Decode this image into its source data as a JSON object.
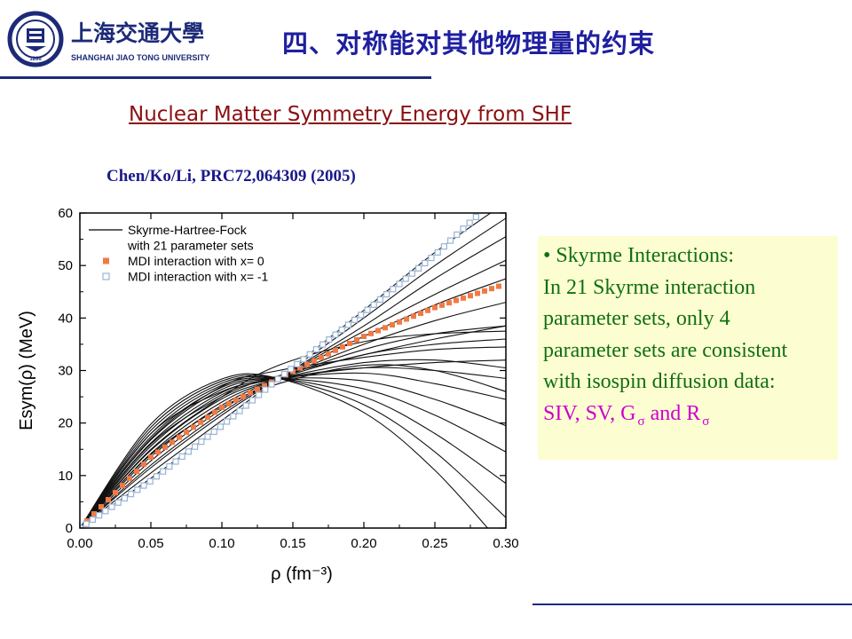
{
  "header": {
    "logo_chinese": "上海交通大學",
    "logo_english": "SHANGHAI JIAO TONG UNIVERSITY",
    "logo_year": "1896",
    "title": "四、对称能对其他物理量的约束"
  },
  "subtitle": "Nuclear Matter Symmetry Energy from SHF",
  "reference": "Chen/Ko/Li, PRC72,064309 (2005)",
  "note": {
    "bullet": "•",
    "heading": "Skyrme Interactions:",
    "lines": [
      "In 21 Skyrme interaction",
      "parameter sets, only 4",
      "parameter sets are consistent",
      "with isospin diffusion data:"
    ],
    "final_main": "SIV, SV, G",
    "final_sub": "σ",
    "final_and": " and R",
    "final_sub2": "σ"
  },
  "colors": {
    "title": "#1f1fa0",
    "subtitle": "#8a1010",
    "reference": "#1a1a8a",
    "note_bg": "#fdfdd2",
    "note_green": "#107010",
    "note_pink": "#cc00cc",
    "mdi0": "#f07a45",
    "mdi_minus1": "#9ab3d3",
    "curve": "#111111"
  },
  "chart_data": {
    "type": "line",
    "xlabel": "ρ (fm⁻³)",
    "ylabel": "Esym(ρ) (MeV)",
    "xlim": [
      0,
      0.3
    ],
    "ylim": [
      0,
      60
    ],
    "xticks": [
      "0.00",
      "0.05",
      "0.10",
      "0.15",
      "0.20",
      "0.25",
      "0.30"
    ],
    "yticks": [
      "0",
      "10",
      "20",
      "30",
      "40",
      "50",
      "60"
    ],
    "grid": false,
    "legend_position": "top-left",
    "legend": [
      {
        "label": "Skyrme-Hartree-Fock",
        "marker": "line"
      },
      {
        "label": "with 21 parameter sets",
        "marker": "none"
      },
      {
        "label": "MDI interaction with x= 0",
        "marker": "filled-square"
      },
      {
        "label": "MDI interaction with x= -1",
        "marker": "open-square"
      }
    ],
    "crossing_point": {
      "x": 0.14,
      "y": 28.5
    },
    "series": [
      {
        "name": "MDI interaction with x= 0",
        "style": "filled-square",
        "x": [
          0.0,
          0.05,
          0.1,
          0.14,
          0.2,
          0.25,
          0.3
        ],
        "y": [
          0,
          13.5,
          23.0,
          28.5,
          36.5,
          42.0,
          46.5
        ]
      },
      {
        "name": "MDI interaction with x= -1",
        "style": "open-square",
        "x": [
          0.0,
          0.05,
          0.1,
          0.14,
          0.2,
          0.25,
          0.28
        ],
        "y": [
          0,
          9.0,
          19.5,
          28.5,
          41.0,
          52.0,
          59.5
        ]
      }
    ],
    "skyrme_curves": [
      {
        "x": [
          0.0,
          0.05,
          0.1,
          0.14,
          0.2,
          0.25,
          0.3
        ],
        "y": [
          0,
          9.5,
          19.5,
          28.5,
          41.5,
          52.5,
          62.0
        ]
      },
      {
        "x": [
          0.0,
          0.05,
          0.1,
          0.14,
          0.2,
          0.25,
          0.3
        ],
        "y": [
          0,
          10.5,
          20.5,
          28.5,
          40.0,
          50.0,
          59.0
        ]
      },
      {
        "x": [
          0.0,
          0.05,
          0.1,
          0.14,
          0.2,
          0.25,
          0.3
        ],
        "y": [
          0,
          11.5,
          21.5,
          28.5,
          38.5,
          47.5,
          55.5
        ]
      },
      {
        "x": [
          0.0,
          0.05,
          0.1,
          0.14,
          0.2,
          0.25,
          0.3
        ],
        "y": [
          0,
          12.0,
          22.0,
          28.5,
          37.5,
          44.5,
          51.0
        ]
      },
      {
        "x": [
          0.0,
          0.05,
          0.1,
          0.14,
          0.2,
          0.25,
          0.3
        ],
        "y": [
          0,
          12.8,
          22.6,
          28.5,
          36.5,
          42.5,
          47.5
        ]
      },
      {
        "x": [
          0.0,
          0.05,
          0.1,
          0.14,
          0.2,
          0.25,
          0.3
        ],
        "y": [
          0,
          13.6,
          23.4,
          28.5,
          35.0,
          39.5,
          43.0
        ]
      },
      {
        "x": [
          0.0,
          0.05,
          0.1,
          0.14,
          0.2,
          0.25,
          0.3
        ],
        "y": [
          0,
          14.2,
          24.0,
          28.5,
          34.0,
          37.0,
          38.5
        ]
      },
      {
        "x": [
          0.0,
          0.05,
          0.1,
          0.14,
          0.2,
          0.25,
          0.3
        ],
        "y": [
          0,
          14.8,
          24.6,
          28.5,
          33.0,
          35.0,
          36.0
        ]
      },
      {
        "x": [
          0.0,
          0.05,
          0.1,
          0.14,
          0.2,
          0.25,
          0.3
        ],
        "y": [
          0,
          15.6,
          25.4,
          28.5,
          31.5,
          32.0,
          30.5
        ]
      },
      {
        "x": [
          0.0,
          0.05,
          0.1,
          0.14,
          0.2,
          0.25,
          0.3
        ],
        "y": [
          0,
          16.2,
          25.8,
          28.5,
          30.5,
          30.0,
          28.5
        ]
      },
      {
        "x": [
          0.0,
          0.05,
          0.1,
          0.14,
          0.2,
          0.25,
          0.3
        ],
        "y": [
          0,
          16.8,
          26.4,
          28.5,
          29.5,
          27.5,
          24.5
        ]
      },
      {
        "x": [
          0.0,
          0.05,
          0.1,
          0.14,
          0.2,
          0.25,
          0.3
        ],
        "y": [
          0,
          17.4,
          26.8,
          28.5,
          28.0,
          24.5,
          19.5
        ]
      },
      {
        "x": [
          0.0,
          0.05,
          0.1,
          0.14,
          0.2,
          0.25,
          0.3
        ],
        "y": [
          0,
          18.0,
          27.2,
          28.5,
          26.5,
          21.5,
          14.5
        ]
      },
      {
        "x": [
          0.0,
          0.05,
          0.1,
          0.14,
          0.2,
          0.25,
          0.3
        ],
        "y": [
          0,
          18.6,
          27.6,
          28.5,
          25.0,
          18.0,
          8.5
        ]
      },
      {
        "x": [
          0.0,
          0.05,
          0.1,
          0.14,
          0.2,
          0.25,
          0.3
        ],
        "y": [
          0,
          19.2,
          28.0,
          28.5,
          23.5,
          14.5,
          2.0
        ]
      },
      {
        "x": [
          0.0,
          0.05,
          0.1,
          0.14,
          0.2,
          0.25,
          0.3
        ],
        "y": [
          0,
          19.8,
          28.4,
          28.5,
          22.0,
          11.0,
          -4.0
        ]
      },
      {
        "x": [
          0.0,
          0.05,
          0.1,
          0.14,
          0.2,
          0.25,
          0.3
        ],
        "y": [
          0,
          17.0,
          27.0,
          30.0,
          32.5,
          34.0,
          34.5
        ]
      },
      {
        "x": [
          0.0,
          0.05,
          0.1,
          0.14,
          0.2,
          0.25,
          0.3
        ],
        "y": [
          0,
          16.0,
          25.0,
          29.0,
          33.0,
          36.0,
          38.5
        ]
      },
      {
        "x": [
          0.0,
          0.05,
          0.1,
          0.14,
          0.2,
          0.25,
          0.3
        ],
        "y": [
          0,
          15.0,
          25.0,
          31.0,
          35.5,
          37.0,
          37.5
        ]
      },
      {
        "x": [
          0.0,
          0.05,
          0.1,
          0.14,
          0.2,
          0.25,
          0.3
        ],
        "y": [
          0,
          18.0,
          26.0,
          28.5,
          30.5,
          31.5,
          32.0
        ]
      },
      {
        "x": [
          0.0,
          0.05,
          0.1,
          0.14,
          0.2,
          0.25,
          0.3
        ],
        "y": [
          0,
          14.0,
          23.0,
          27.5,
          31.0,
          30.0,
          26.0
        ]
      }
    ]
  }
}
